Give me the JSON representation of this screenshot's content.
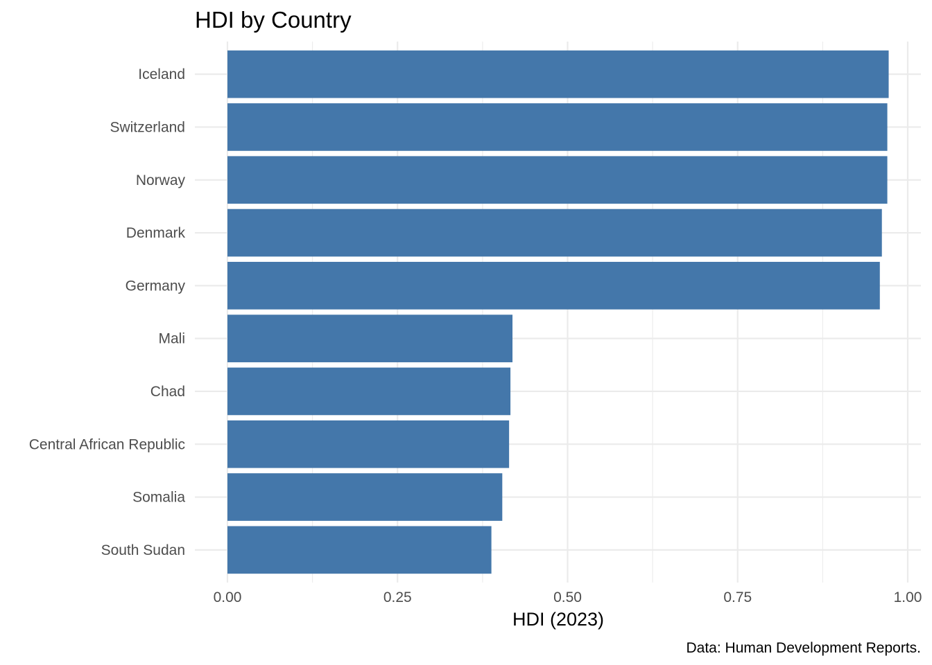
{
  "chart_data": {
    "type": "bar",
    "orientation": "horizontal",
    "title": "HDI by Country",
    "xlabel": "HDI (2023)",
    "ylabel": "",
    "caption": "Data: Human Development Reports.",
    "categories": [
      "Iceland",
      "Switzerland",
      "Norway",
      "Denmark",
      "Germany",
      "Mali",
      "Chad",
      "Central African Republic",
      "Somalia",
      "South Sudan"
    ],
    "values": [
      0.972,
      0.97,
      0.97,
      0.962,
      0.959,
      0.419,
      0.416,
      0.414,
      0.404,
      0.388
    ],
    "xlim": [
      0,
      1
    ],
    "x_ticks": [
      "0.00",
      "0.25",
      "0.50",
      "0.75",
      "1.00"
    ],
    "x_tick_values": [
      0,
      0.25,
      0.5,
      0.75,
      1.0
    ],
    "grid": true,
    "legend": "none",
    "colors": {
      "bar": "#4477AA",
      "grid": "#EBEBEB",
      "tick_text": "#4D4D4D"
    }
  }
}
